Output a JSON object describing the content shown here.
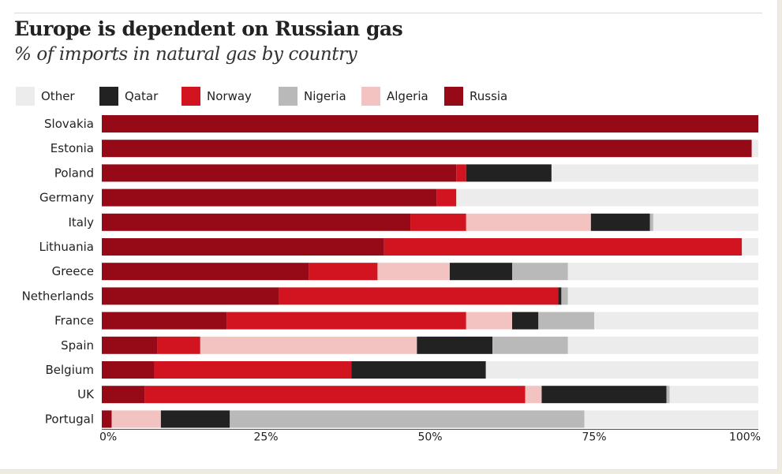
{
  "title": "Europe is dependent on Russian gas",
  "subtitle": "% of imports in natural gas by country",
  "colors": {
    "Other": "#ececec",
    "Qatar": "#222222",
    "Norway": "#d1141f",
    "Nigeria": "#b9b9b9",
    "Algeria": "#f2c3c1",
    "Russia": "#960a18"
  },
  "chart_data": {
    "type": "bar",
    "orientation": "horizontal",
    "stacked": true,
    "title": "Europe is dependent on Russian gas",
    "subtitle": "% of imports in natural gas by country",
    "legend": [
      "Other",
      "Qatar",
      "Norway",
      "Nigeria",
      "Algeria",
      "Russia"
    ],
    "stack_order": [
      "Russia",
      "Norway",
      "Algeria",
      "Qatar",
      "Nigeria",
      "Other"
    ],
    "categories": [
      "Slovakia",
      "Estonia",
      "Poland",
      "Germany",
      "Italy",
      "Lithuania",
      "Greece",
      "Netherlands",
      "France",
      "Spain",
      "Belgium",
      "UK",
      "Portugal"
    ],
    "series": [
      {
        "name": "Russia",
        "values": [
          100,
          99,
          54,
          51,
          47,
          43,
          31.5,
          27,
          19,
          8.5,
          8,
          6.5,
          1.5
        ]
      },
      {
        "name": "Norway",
        "values": [
          0,
          0,
          1.5,
          3,
          8.5,
          54.5,
          10.5,
          42.5,
          36.5,
          6.5,
          30,
          58,
          0
        ]
      },
      {
        "name": "Algeria",
        "values": [
          0,
          0,
          0,
          0,
          19,
          0,
          11,
          0,
          7,
          33,
          0,
          2.5,
          7.5
        ]
      },
      {
        "name": "Qatar",
        "values": [
          0,
          0,
          13,
          0,
          9,
          0,
          9.5,
          0.5,
          4,
          11.5,
          20.5,
          19,
          10.5
        ]
      },
      {
        "name": "Nigeria",
        "values": [
          0,
          0,
          0,
          0,
          0.5,
          0,
          8.5,
          1,
          8.5,
          11.5,
          0,
          0.5,
          54
        ]
      },
      {
        "name": "Other",
        "values": [
          0,
          1,
          31.5,
          46,
          16,
          2.5,
          29,
          29,
          25,
          29,
          41.5,
          13.5,
          26.5
        ]
      }
    ],
    "xticks": [
      "0%",
      "25%",
      "50%",
      "75%",
      "100%"
    ],
    "xlim": [
      0,
      100
    ],
    "grid": false
  }
}
